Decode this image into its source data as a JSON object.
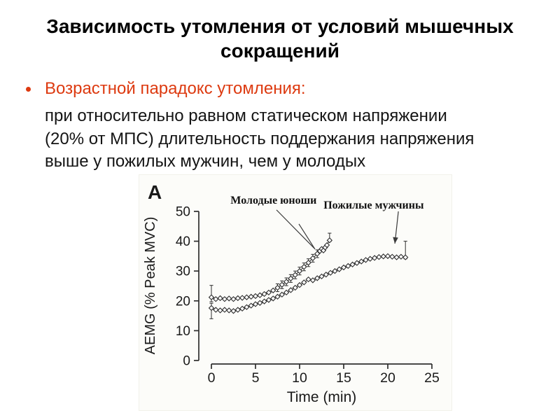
{
  "slide": {
    "title": "Зависимость утомления от условий мышечных сокращений",
    "bullet": {
      "label": "Возрастной парадокс утомления:",
      "color": "#dd3a10"
    },
    "body_lines": [
      "при относительно равном статическом напряжении",
      "(20% от МПС) длительность поддержания напряжения",
      "выше у пожилых мужчин, чем у молодых"
    ]
  },
  "chart_data": {
    "type": "line",
    "panel_label": "A",
    "title": "",
    "xlabel": "Time (min)",
    "ylabel": "AEMG (% Peak MVC)",
    "xlim": [
      0,
      25
    ],
    "ylim": [
      0,
      50
    ],
    "x_ticks": [
      0,
      5,
      10,
      15,
      20,
      25
    ],
    "y_ticks": [
      0,
      10,
      20,
      30,
      40,
      50
    ],
    "grid": false,
    "legend_position": "none",
    "marker": "open-diamond",
    "line_color": "#2e2e2e",
    "text_color": "#1a1a1a",
    "series": [
      {
        "name": "Молодые юноши",
        "points": [
          [
            0,
            21.2
          ],
          [
            0.5,
            20.6
          ],
          [
            1,
            20.9
          ],
          [
            1.5,
            20.6
          ],
          [
            2,
            20.8
          ],
          [
            2.5,
            20.6
          ],
          [
            3,
            20.9
          ],
          [
            3.5,
            21
          ],
          [
            4,
            21.2
          ],
          [
            4.5,
            21.4
          ],
          [
            5,
            21.6
          ],
          [
            5.5,
            21.9
          ],
          [
            6,
            22.3
          ],
          [
            6.5,
            22.8
          ],
          [
            7,
            23.5
          ],
          [
            7.5,
            24.4
          ],
          [
            8,
            25.4
          ],
          [
            8.5,
            26.4
          ],
          [
            9,
            27.5
          ],
          [
            9.5,
            28.7
          ],
          [
            10,
            30
          ],
          [
            10.5,
            31.4
          ],
          [
            11,
            32.8
          ],
          [
            11.5,
            34.3
          ],
          [
            12,
            35.8
          ],
          [
            12.3,
            36.7
          ],
          [
            12.5,
            37.4
          ],
          [
            12.7,
            36.9
          ],
          [
            12.9,
            37.9
          ],
          [
            13.1,
            38.7
          ],
          [
            13.4,
            40.3
          ]
        ],
        "error_bars": [
          [
            0,
            21.2,
            4,
            1.5
          ],
          [
            7.5,
            24.4,
            1.3,
            1.3
          ],
          [
            8,
            25.4,
            1.3,
            1.3
          ],
          [
            8.5,
            26.4,
            1.3,
            1.3
          ],
          [
            9,
            27.5,
            1.3,
            1.3
          ],
          [
            9.5,
            28.7,
            1.3,
            1.3
          ],
          [
            10,
            30,
            1.3,
            1.3
          ],
          [
            10.5,
            31.4,
            1.3,
            1.3
          ],
          [
            11,
            32.8,
            1.3,
            1.3
          ],
          [
            11.5,
            34.3,
            1.3,
            1.3
          ],
          [
            12,
            35.8,
            1.3,
            1.3
          ],
          [
            13.4,
            40.3,
            2.4,
            0.4
          ]
        ]
      },
      {
        "name": "Пожилые мужчины",
        "points": [
          [
            0,
            17.6
          ],
          [
            0.5,
            17
          ],
          [
            1,
            16.8
          ],
          [
            1.5,
            17
          ],
          [
            2,
            16.8
          ],
          [
            2.5,
            16.6
          ],
          [
            3,
            17
          ],
          [
            3.5,
            17.4
          ],
          [
            4,
            17.9
          ],
          [
            4.5,
            18.4
          ],
          [
            5,
            18.9
          ],
          [
            5.5,
            19.3
          ],
          [
            6,
            19.8
          ],
          [
            6.5,
            20.3
          ],
          [
            7,
            20.8
          ],
          [
            7.5,
            21.4
          ],
          [
            8,
            22.1
          ],
          [
            8.5,
            22.8
          ],
          [
            9,
            23.6
          ],
          [
            9.5,
            24.4
          ],
          [
            10,
            25.3
          ],
          [
            10.5,
            26.2
          ],
          [
            11,
            27.2
          ],
          [
            11.5,
            26.9
          ],
          [
            12,
            27.6
          ],
          [
            12.5,
            28.2
          ],
          [
            13,
            28.8
          ],
          [
            13.5,
            29.4
          ],
          [
            14,
            30
          ],
          [
            14.5,
            30.6
          ],
          [
            15,
            31.2
          ],
          [
            15.5,
            31.7
          ],
          [
            16,
            32.2
          ],
          [
            16.5,
            32.7
          ],
          [
            17,
            33.2
          ],
          [
            17.5,
            33.7
          ],
          [
            18,
            34.1
          ],
          [
            18.5,
            34.4
          ],
          [
            19,
            34.7
          ],
          [
            19.5,
            34.9
          ],
          [
            20,
            35
          ],
          [
            20.5,
            34.8
          ],
          [
            21,
            34.6
          ],
          [
            21.5,
            34.8
          ],
          [
            22,
            34.6
          ]
        ],
        "error_bars": [
          [
            0,
            17.6,
            1.6,
            3.6
          ],
          [
            22,
            34.6,
            5.4,
            0.5
          ]
        ]
      }
    ],
    "annotations": [
      {
        "label": "Молодые юноши",
        "label_at": [
          7.05,
          52.6
        ],
        "arrowhead": false,
        "lines": [
          [
            [
              7.38,
              50.5
            ],
            [
              11.67,
              37.6
            ]
          ],
          [
            [
              9.92,
              45.8
            ],
            [
              11.75,
              37.3
            ]
          ]
        ]
      },
      {
        "label": "Пожилые мужчины",
        "label_at": [
          18.4,
          50.9
        ],
        "arrowhead": true,
        "lines": [
          [
            [
              21.2,
              50
            ],
            [
              20.8,
              39.2
            ]
          ]
        ]
      }
    ]
  }
}
